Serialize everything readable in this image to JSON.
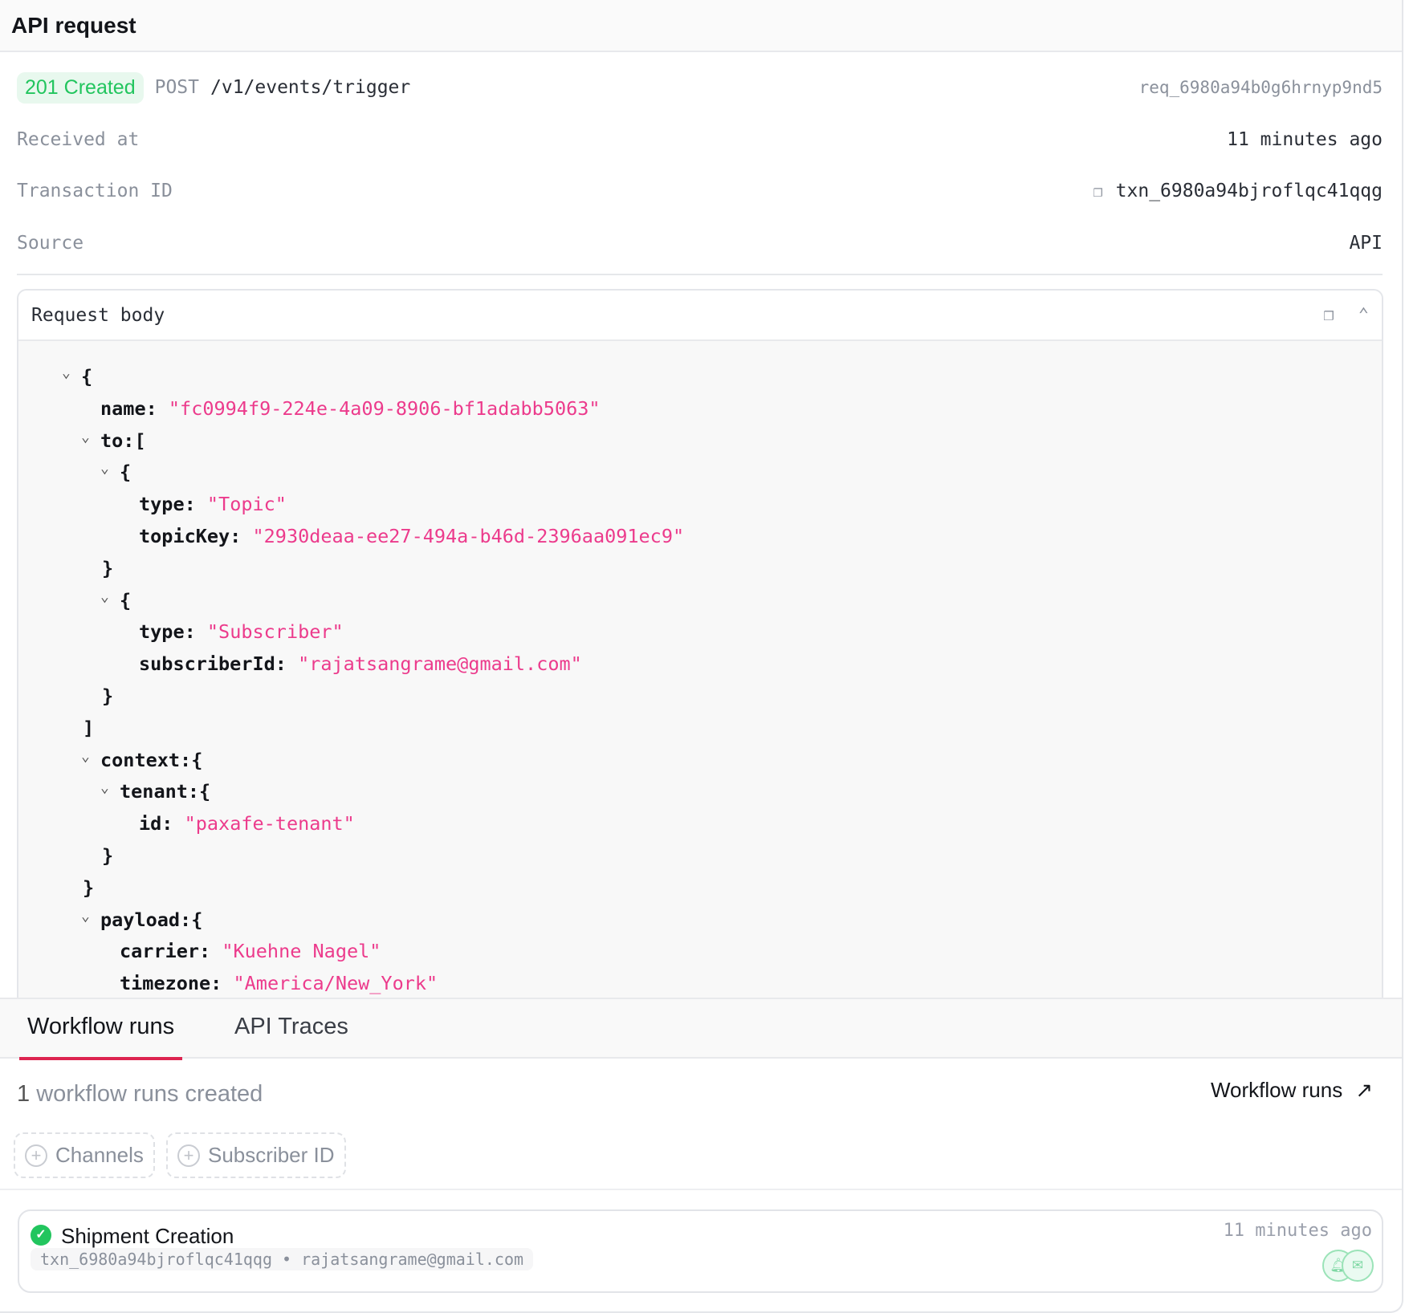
{
  "header": {
    "title": "API request"
  },
  "request": {
    "status": "201 Created",
    "method": "POST",
    "path": "/v1/events/trigger",
    "request_id": "req_6980a94b0g6hrnyp9nd5"
  },
  "details": [
    {
      "label": "Received at",
      "value": "11 minutes ago"
    },
    {
      "label": "Transaction ID",
      "value": "txn_6980a94bjroflqc41qqg",
      "copy": true
    },
    {
      "label": "Source",
      "value": "API"
    }
  ],
  "body_panel": {
    "title": "Request body"
  },
  "json_lines": [
    {
      "level": 0,
      "chevron": true,
      "text": "{"
    },
    {
      "level": 1,
      "key": "name:",
      "str": "\"fc0994f9-224e-4a09-8906-bf1adabb5063\""
    },
    {
      "level": 1,
      "chevron": true,
      "key": "to:",
      "text": "["
    },
    {
      "level": 2,
      "chevron": true,
      "text": "{"
    },
    {
      "level": 3,
      "key": "type:",
      "str": "\"Topic\""
    },
    {
      "level": 3,
      "key": "topicKey:",
      "str": "\"2930deaa-ee27-494a-b46d-2396aa091ec9\""
    },
    {
      "level": 2,
      "close": true,
      "text": "}"
    },
    {
      "level": 2,
      "chevron": true,
      "text": "{"
    },
    {
      "level": 3,
      "key": "type:",
      "str": "\"Subscriber\""
    },
    {
      "level": 3,
      "key": "subscriberId:",
      "str": "\"rajatsangrame@gmail.com\""
    },
    {
      "level": 2,
      "close": true,
      "text": "}"
    },
    {
      "level": 1,
      "close": true,
      "text": "]"
    },
    {
      "level": 1,
      "chevron": true,
      "key": "context:",
      "text": "{"
    },
    {
      "level": 2,
      "chevron": true,
      "key": "tenant:",
      "text": "{"
    },
    {
      "level": 3,
      "key": "id:",
      "str": "\"paxafe-tenant\""
    },
    {
      "level": 2,
      "close": true,
      "text": "}"
    },
    {
      "level": 1,
      "close": true,
      "text": "}"
    },
    {
      "level": 1,
      "chevron": true,
      "key": "payload:",
      "text": "{"
    },
    {
      "level": 2,
      "key": "carrier:",
      "str": "\"Kuehne Nagel\""
    },
    {
      "level": 2,
      "key": "timezone:",
      "str": "\"America/New_York\""
    }
  ],
  "tabs": [
    {
      "label": "Workflow runs",
      "active": true
    },
    {
      "label": "API Traces"
    }
  ],
  "runs": {
    "count": "1",
    "count_text": "workflow runs created",
    "link": "Workflow runs",
    "filters": [
      "Channels",
      "Subscriber ID"
    ]
  },
  "run_card": {
    "title": "Shipment Creation",
    "subtitle": "txn_6980a94bjroflqc41qqg • rajatsangrame@gmail.com",
    "time": "11 minutes ago",
    "status": "completed",
    "channels": [
      "in-app-bell-icon",
      "email-icon"
    ]
  },
  "colors": {
    "success": "#22c55e",
    "string": "#ec3b8c",
    "tab_accent": "#dd2450"
  }
}
